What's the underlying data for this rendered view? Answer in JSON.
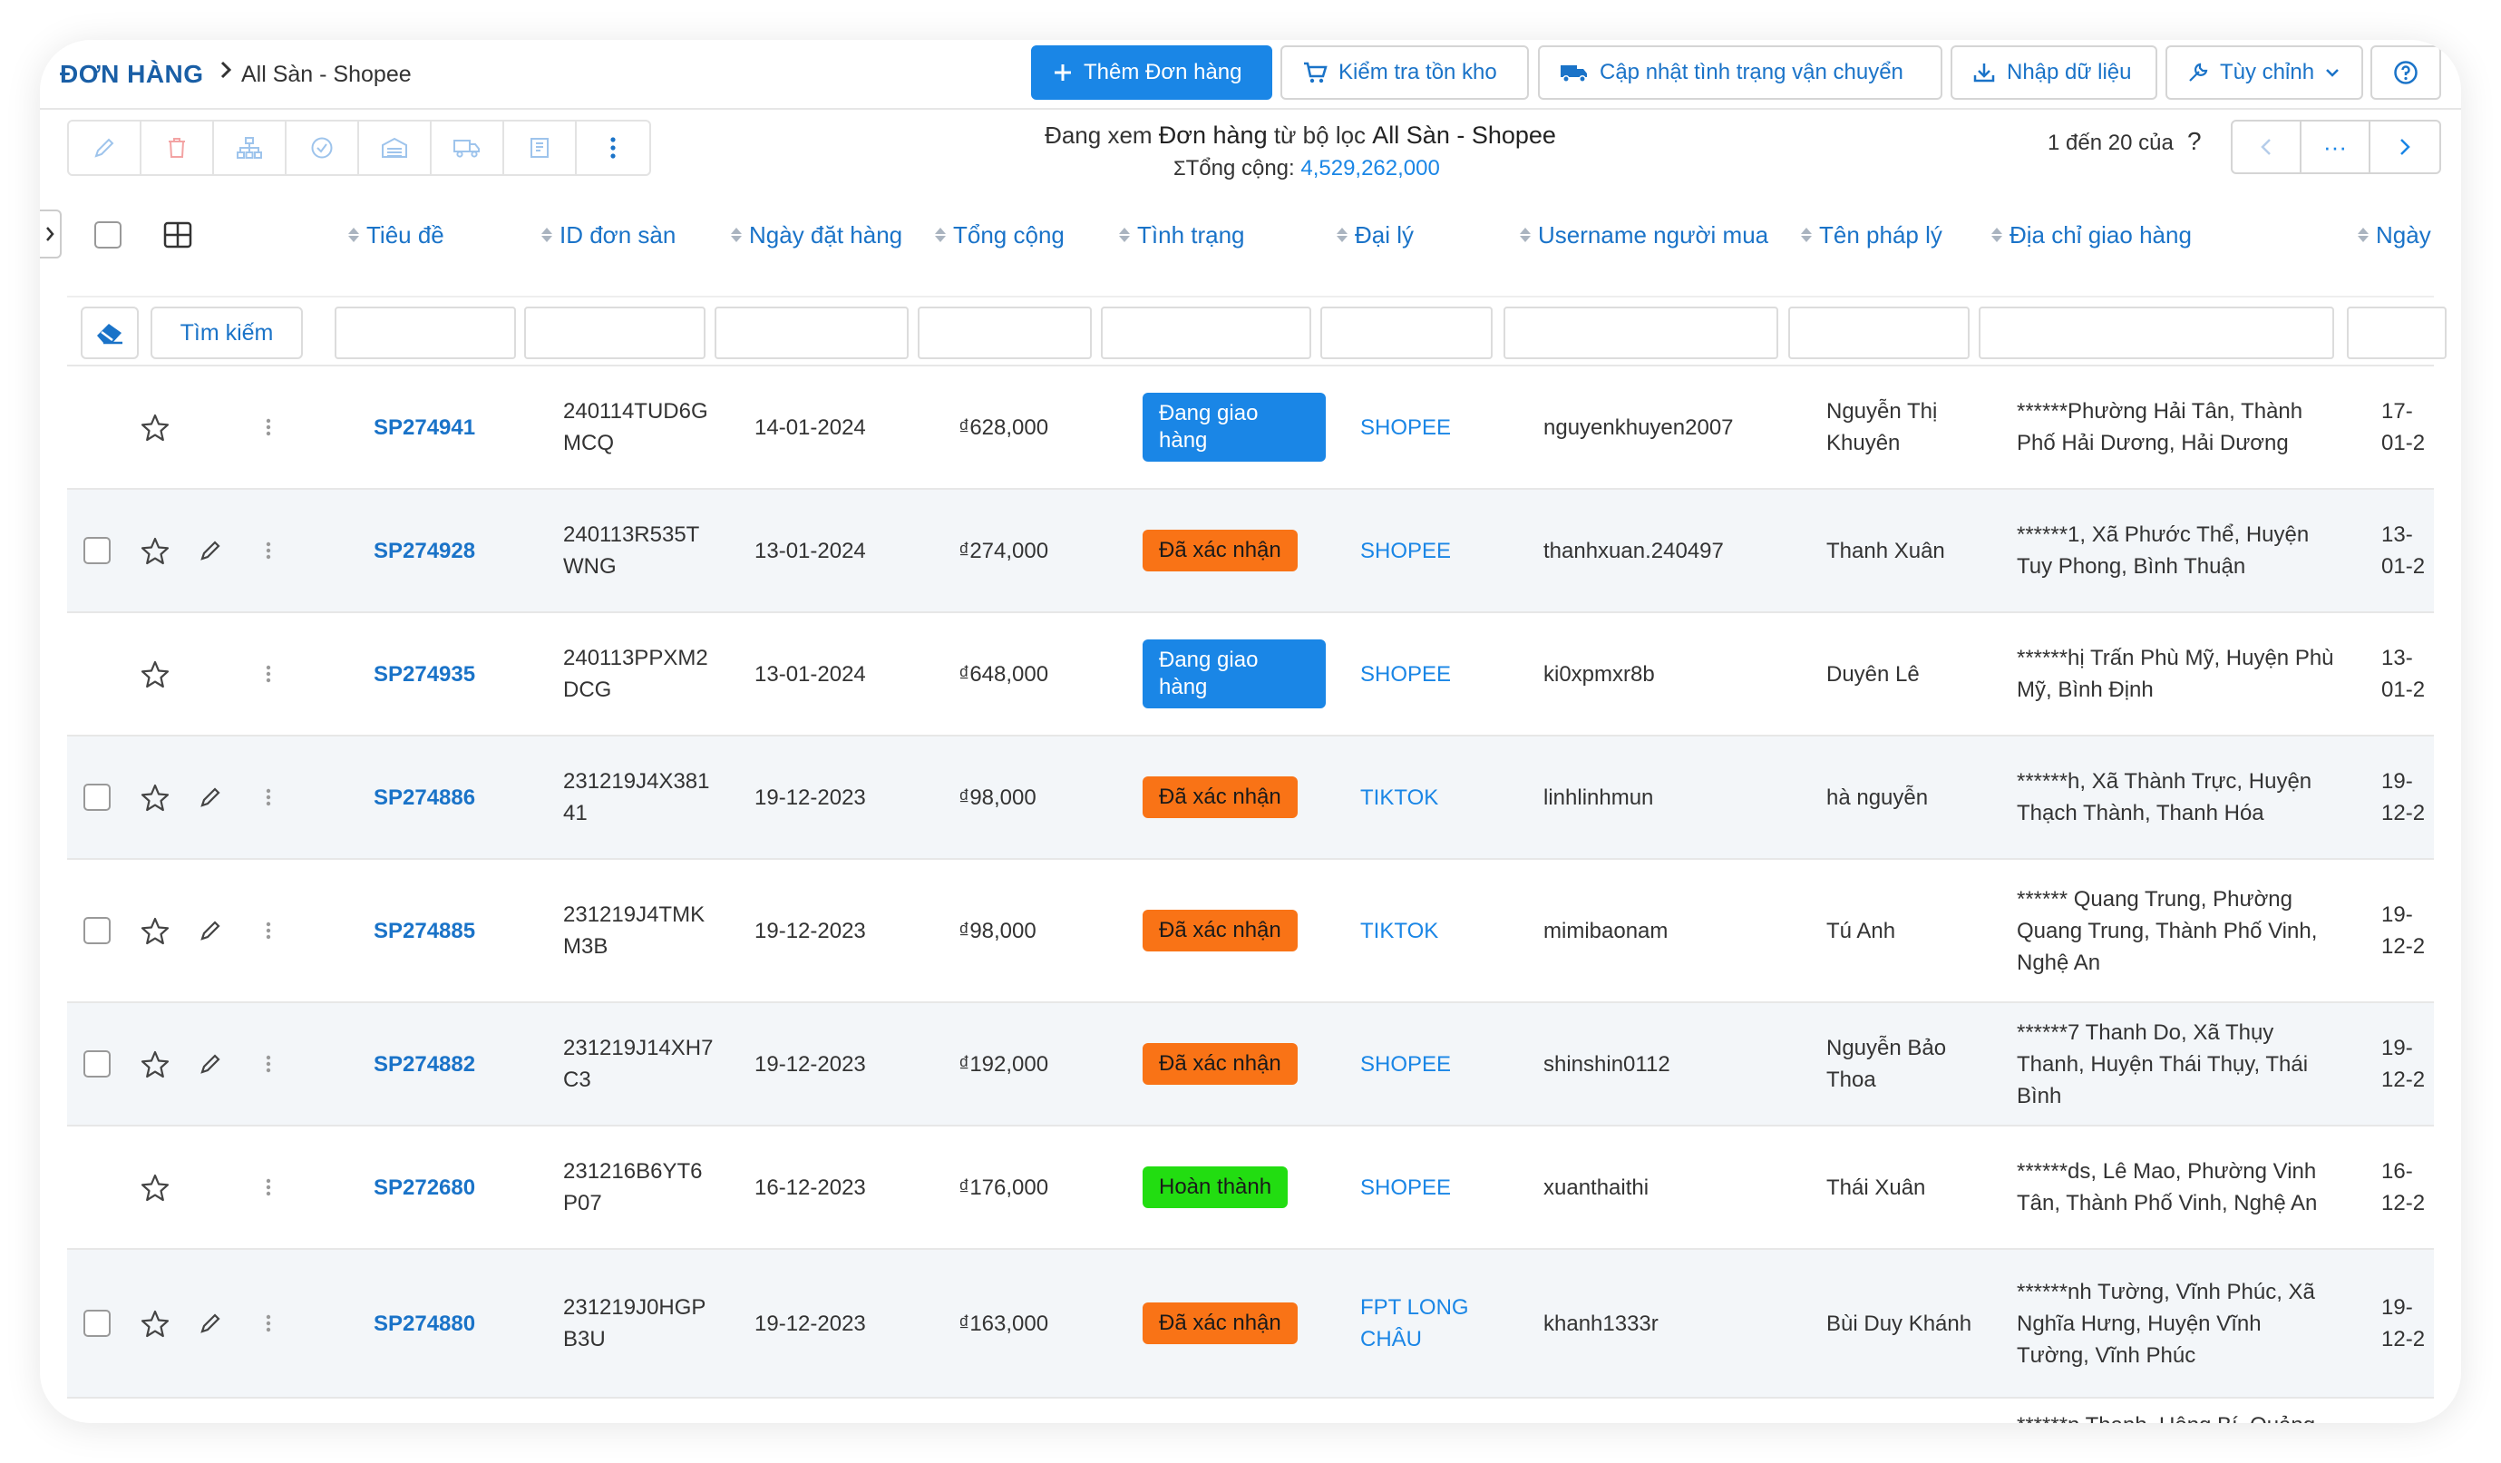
{
  "header": {
    "title": "ĐƠN HÀNG",
    "breadcrumb": "All Sàn - Shopee",
    "add_order": "Thêm Đơn hàng",
    "check_stock": "Kiểm tra tồn kho",
    "update_shipping": "Cập nhật tình trạng vận chuyển",
    "import_data": "Nhập dữ liệu",
    "customize": "Tùy chỉnh"
  },
  "summary": {
    "prefix": "Đang xem ",
    "entity": "Đơn hàng",
    "middle": " từ bộ lọc ",
    "filter": "All Sàn - Shopee",
    "total_label": "Tổng cộng: ",
    "total_value": "4,529,262,000"
  },
  "pagination": {
    "info": "1 đến 20 của",
    "help": "?",
    "more": "···"
  },
  "columns": [
    "Tiêu đề",
    "ID đơn sàn",
    "Ngày đặt hàng",
    "Tổng cộng",
    "Tình trạng",
    "Đại lý",
    "Username người mua",
    "Tên pháp lý",
    "Địa chỉ giao hàng",
    "Ngày"
  ],
  "filters": {
    "search_label": "Tìm kiếm"
  },
  "colors": {
    "accent": "#1a86e6",
    "link": "#1a73c8",
    "confirmed": "#f97316",
    "completed": "#22dd11"
  },
  "rows": [
    {
      "code": "SP274941",
      "order_id": "240114TUD6G\nMCQ",
      "order_date": "14-01-2024",
      "total": "₫628,000",
      "status": "Đang giao hàng",
      "status_type": "blue",
      "agent": "SHOPEE",
      "username": "nguyenkhuyen2007",
      "legal_name": "Nguyễn Thị\nKhuyên",
      "address": "******Phường Hải Tân, Thành\nPhố Hải Dương, Hải Dương",
      "date2": "17-01-2",
      "checkbox": false,
      "editable": false
    },
    {
      "code": "SP274928",
      "order_id": "240113R535T\nWNG",
      "order_date": "13-01-2024",
      "total": "₫274,000",
      "status": "Đã xác nhận",
      "status_type": "orange",
      "agent": "SHOPEE",
      "username": "thanhxuan.240497",
      "legal_name": "Thanh Xuân",
      "address": "******1, Xã Phước Thể, Huyện\nTuy Phong, Bình Thuận",
      "date2": "13-01-2",
      "checkbox": true,
      "editable": true
    },
    {
      "code": "SP274935",
      "order_id": "240113PPXM2\nDCG",
      "order_date": "13-01-2024",
      "total": "₫648,000",
      "status": "Đang giao hàng",
      "status_type": "blue",
      "agent": "SHOPEE",
      "username": "ki0xpmxr8b",
      "legal_name": "Duyên Lê",
      "address": "******hị Trấn Phù Mỹ, Huyện Phù\nMỹ, Bình Định",
      "date2": "13-01-2",
      "checkbox": false,
      "editable": false
    },
    {
      "code": "SP274886",
      "order_id": "231219J4X381\n41",
      "order_date": "19-12-2023",
      "total": "₫98,000",
      "status": "Đã xác nhận",
      "status_type": "orange",
      "agent": "TIKTOK",
      "username": "linhlinhmun",
      "legal_name": "hà nguyễn",
      "address": "******h, Xã Thành Trực, Huyện\nThạch Thành, Thanh Hóa",
      "date2": "19-12-2",
      "checkbox": true,
      "editable": true
    },
    {
      "code": "SP274885",
      "order_id": "231219J4TMK\nM3B",
      "order_date": "19-12-2023",
      "total": "₫98,000",
      "status": "Đã xác nhận",
      "status_type": "orange",
      "agent": "TIKTOK",
      "username": "mimibaonam",
      "legal_name": "Tú Anh",
      "address": "****** Quang Trung, Phường\nQuang Trung, Thành Phố Vinh,\nNghệ An",
      "date2": "19-12-2",
      "checkbox": true,
      "editable": true
    },
    {
      "code": "SP274882",
      "order_id": "231219J14XH7\nC3",
      "order_date": "19-12-2023",
      "total": "₫192,000",
      "status": "Đã xác nhận",
      "status_type": "orange",
      "agent": "SHOPEE",
      "username": "shinshin0112",
      "legal_name": "Nguyễn Bảo\nThoa",
      "address": "******7 Thanh Do, Xã Thụy\nThanh, Huyện Thái Thụy, Thái\nBình",
      "date2": "19-12-2",
      "checkbox": true,
      "editable": true
    },
    {
      "code": "SP272680",
      "order_id": "231216B6YT6\nP07",
      "order_date": "16-12-2023",
      "total": "₫176,000",
      "status": "Hoàn thành",
      "status_type": "green",
      "agent": "SHOPEE",
      "username": "xuanthaithi",
      "legal_name": "Thái Xuân",
      "address": "******ds, Lê Mao, Phường Vinh\nTân, Thành Phố Vinh, Nghệ An",
      "date2": "16-12-2",
      "checkbox": false,
      "editable": false
    },
    {
      "code": "SP274880",
      "order_id": "231219J0HGP\nB3U",
      "order_date": "19-12-2023",
      "total": "₫163,000",
      "status": "Đã xác nhận",
      "status_type": "orange",
      "agent": "FPT LONG\nCHÂU",
      "username": "khanh1333r",
      "legal_name": "Bùi Duy Khánh",
      "address": "******nh Tường, Vĩnh Phúc, Xã\nNghĩa Hưng, Huyện Vĩnh\nTường, Vĩnh Phúc",
      "date2": "19-12-2",
      "checkbox": true,
      "editable": true
    },
    {
      "code": "",
      "order_id": "",
      "order_date": "",
      "total": "",
      "status": "",
      "status_type": "none",
      "agent": "",
      "username": "",
      "legal_name": "",
      "address": "******n Thanh, Uông Bí, Quảng",
      "date2": "",
      "checkbox": false,
      "editable": false
    }
  ]
}
